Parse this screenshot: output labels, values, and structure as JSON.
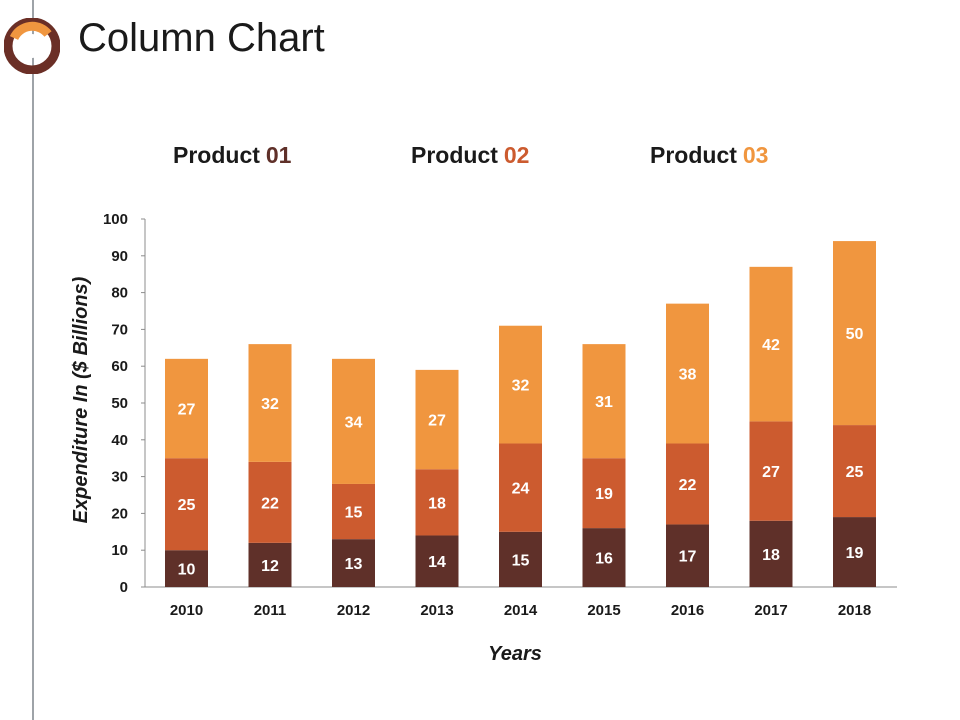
{
  "slide": {
    "title": "Column Chart"
  },
  "legend": [
    {
      "name": "Product",
      "num": "01",
      "color": "#5f3029"
    },
    {
      "name": "Product",
      "num": "02",
      "color": "#cc5b2f"
    },
    {
      "name": "Product",
      "num": "03",
      "color": "#f0963f"
    }
  ],
  "colors": {
    "product01": "#5f3029",
    "product02": "#cc5b2f",
    "product03": "#f0963f",
    "logo_ring": "#6b2f26",
    "logo_accent": "#f0963f"
  },
  "chart_data": {
    "type": "bar",
    "stacked": true,
    "title": "",
    "xlabel": "Years",
    "ylabel": "Expenditure In ($ Billions)",
    "ylim": [
      0,
      100
    ],
    "yticks": [
      0,
      10,
      20,
      30,
      40,
      50,
      60,
      70,
      80,
      90,
      100
    ],
    "categories": [
      "2010",
      "2011",
      "2012",
      "2013",
      "2014",
      "2015",
      "2016",
      "2017",
      "2018"
    ],
    "series": [
      {
        "name": "Product 01",
        "color": "#5f3029",
        "values": [
          10,
          12,
          13,
          14,
          15,
          16,
          17,
          18,
          19
        ]
      },
      {
        "name": "Product 02",
        "color": "#cc5b2f",
        "values": [
          25,
          22,
          15,
          18,
          24,
          19,
          22,
          27,
          25
        ]
      },
      {
        "name": "Product 03",
        "color": "#f0963f",
        "values": [
          27,
          32,
          34,
          27,
          32,
          31,
          38,
          42,
          50
        ]
      }
    ]
  }
}
